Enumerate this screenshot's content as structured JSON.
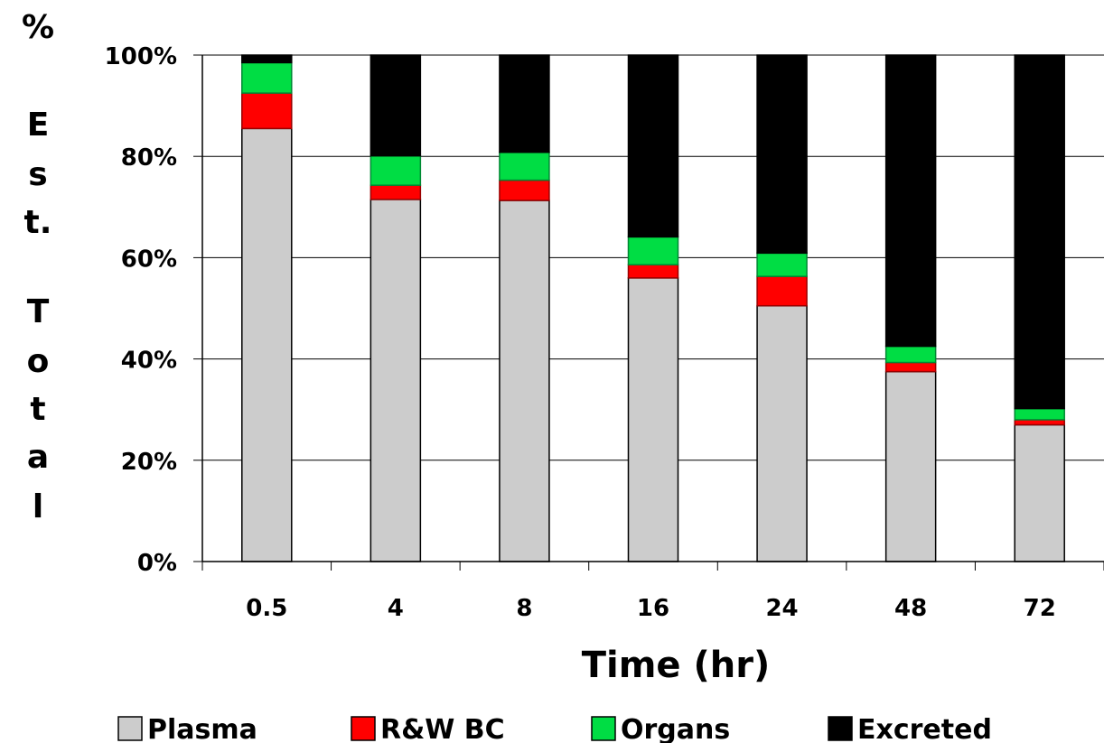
{
  "chart_data": {
    "type": "bar",
    "stacked": true,
    "percent_stacked": true,
    "categories": [
      "0.5",
      "4",
      "8",
      "16",
      "24",
      "48",
      "72"
    ],
    "series": [
      {
        "name": "Plasma",
        "color": "#cccccc",
        "values": [
          85.5,
          71.5,
          71.3,
          56.0,
          50.5,
          37.5,
          27.0
        ]
      },
      {
        "name": "R&W BC",
        "color": "#ff0000",
        "values": [
          7.0,
          2.8,
          4.0,
          2.6,
          5.8,
          1.8,
          1.0
        ]
      },
      {
        "name": "Organs",
        "color": "#00dd44",
        "values": [
          6.0,
          5.8,
          5.5,
          5.5,
          4.6,
          3.2,
          2.2
        ]
      },
      {
        "name": "Excreted",
        "color": "#000000",
        "values": [
          1.5,
          19.9,
          19.2,
          35.9,
          39.1,
          57.5,
          69.8
        ]
      }
    ],
    "xlabel": "Time (hr)",
    "ylabel": "% Est. Total",
    "ylabel_chars": [
      "%",
      "E",
      "s",
      "t.",
      "T",
      "o",
      "t",
      "a",
      "l"
    ],
    "ylim": [
      0,
      100
    ],
    "yticks": [
      "0%",
      "20%",
      "40%",
      "60%",
      "80%",
      "100%"
    ],
    "grid": true,
    "legend_position": "bottom"
  }
}
